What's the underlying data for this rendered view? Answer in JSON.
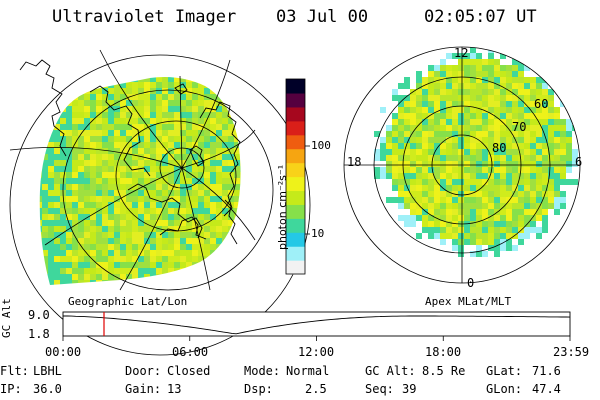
{
  "header": {
    "instrument": "Ultraviolet Imager",
    "date": "03 Jul 00",
    "time": "02:05:07 UT"
  },
  "colorbar": {
    "unit_label": "photon cm⁻²s⁻¹",
    "ticks": [
      "100",
      "10"
    ],
    "colors": [
      "#f2f2f2",
      "#9ff0f8",
      "#24c8e6",
      "#3fd79c",
      "#86e04a",
      "#c5ea1a",
      "#eef21a",
      "#f8d219",
      "#f6a511",
      "#ef5d10",
      "#da1f19",
      "#a6071e",
      "#55003f",
      "#000028"
    ]
  },
  "geo_panel": {
    "caption": "Geographic Lat/Lon"
  },
  "polar_panel": {
    "caption": "Apex MLat/MLT",
    "mlt_labels": [
      "12",
      "18",
      "6",
      "0"
    ],
    "lat_labels": [
      "60",
      "70",
      "80"
    ]
  },
  "timeline": {
    "axis_title": "GC Alt",
    "y_ticks": [
      "9.0",
      "1.8"
    ],
    "x_ticks": [
      "00:00",
      "06:00",
      "12:00",
      "18:00",
      "23:59"
    ],
    "marker_color": "#e00000"
  },
  "status": {
    "row1": [
      {
        "key": "Flt:",
        "value": "LBHL"
      },
      {
        "key": "Door:",
        "value": "Closed"
      },
      {
        "key": "Mode:",
        "value": "Normal"
      },
      {
        "key": "GC Alt:",
        "value": "8.5 Re"
      },
      {
        "key": "GLat:",
        "value": "71.6"
      }
    ],
    "row2": [
      {
        "key": "IP:",
        "value": "36.0"
      },
      {
        "key": "Gain:",
        "value": "13"
      },
      {
        "key": "Dsp:",
        "value": "2.5"
      },
      {
        "key": "Seq:",
        "value": "39"
      },
      {
        "key": "GLon:",
        "value": "47.4"
      }
    ]
  }
}
